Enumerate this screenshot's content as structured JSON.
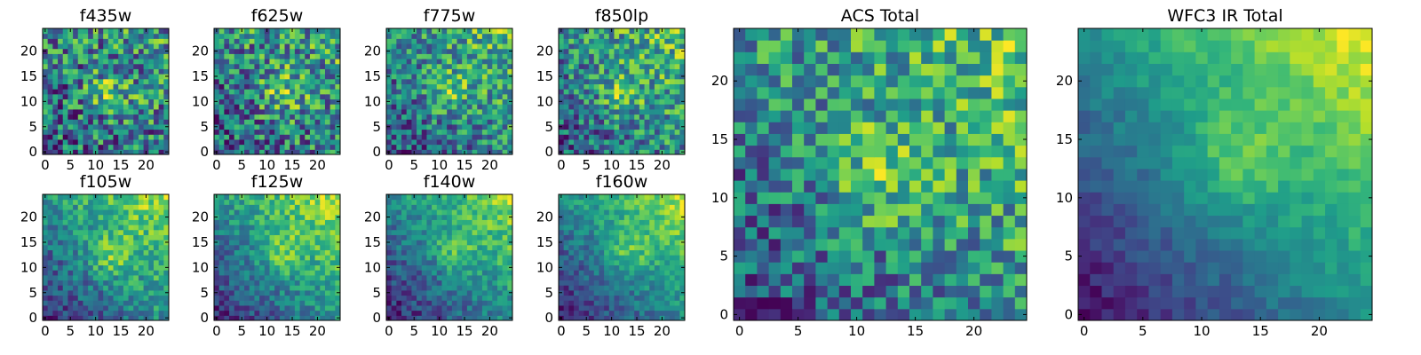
{
  "chart_data": {
    "type": "heatmap",
    "colormap": "viridis",
    "grid": false,
    "grid_size": [
      25,
      25
    ],
    "origin": "lower",
    "panels": [
      {
        "id": "f435w",
        "title": "f435w",
        "xticks": [
          "0",
          "5",
          "10",
          "15",
          "20"
        ],
        "yticks": [
          "0",
          "5",
          "10",
          "15",
          "20"
        ],
        "xlim": [
          -0.5,
          24.5
        ],
        "ylim": [
          -0.5,
          24.5
        ],
        "value_range": [
          0,
          1
        ],
        "noise": 0.42,
        "gradient": 0.12,
        "bright_spot": [
          13,
          12
        ],
        "seed": 11
      },
      {
        "id": "f625w",
        "title": "f625w",
        "xticks": [
          "0",
          "5",
          "10",
          "15",
          "20"
        ],
        "yticks": [
          "0",
          "5",
          "10",
          "15",
          "20"
        ],
        "xlim": [
          -0.5,
          24.5
        ],
        "ylim": [
          -0.5,
          24.5
        ],
        "value_range": [
          0,
          1
        ],
        "noise": 0.4,
        "gradient": 0.18,
        "bright_spot": [
          13,
          12
        ],
        "seed": 23
      },
      {
        "id": "f775w",
        "title": "f775w",
        "xticks": [
          "0",
          "5",
          "10",
          "15",
          "20"
        ],
        "yticks": [
          "0",
          "5",
          "10",
          "15",
          "20"
        ],
        "xlim": [
          -0.5,
          24.5
        ],
        "ylim": [
          -0.5,
          24.5
        ],
        "value_range": [
          0,
          1
        ],
        "noise": 0.38,
        "gradient": 0.32,
        "bright_spot": [
          12,
          12
        ],
        "seed": 37
      },
      {
        "id": "f850lp",
        "title": "f850lp",
        "xticks": [
          "0",
          "5",
          "10",
          "15",
          "20"
        ],
        "yticks": [
          "0",
          "5",
          "10",
          "15",
          "20"
        ],
        "xlim": [
          -0.5,
          24.5
        ],
        "ylim": [
          -0.5,
          24.5
        ],
        "value_range": [
          0,
          1
        ],
        "noise": 0.38,
        "gradient": 0.3,
        "bright_spot": [
          12,
          12
        ],
        "seed": 41
      },
      {
        "id": "f105w",
        "title": "f105w",
        "xticks": [
          "0",
          "5",
          "10",
          "15",
          "20"
        ],
        "yticks": [
          "0",
          "5",
          "10",
          "15",
          "20"
        ],
        "xlim": [
          -0.5,
          24.5
        ],
        "ylim": [
          -0.5,
          24.5
        ],
        "value_range": [
          0,
          1
        ],
        "noise": 0.24,
        "gradient": 0.55,
        "bright_spot": [
          13,
          12
        ],
        "seed": 53
      },
      {
        "id": "f125w",
        "title": "f125w",
        "xticks": [
          "0",
          "5",
          "10",
          "15",
          "20"
        ],
        "yticks": [
          "0",
          "5",
          "10",
          "15",
          "20"
        ],
        "xlim": [
          -0.5,
          24.5
        ],
        "ylim": [
          -0.5,
          24.5
        ],
        "value_range": [
          0,
          1
        ],
        "noise": 0.22,
        "gradient": 0.6,
        "bright_spot": [
          13,
          13
        ],
        "seed": 67
      },
      {
        "id": "f140w",
        "title": "f140w",
        "xticks": [
          "0",
          "5",
          "10",
          "15",
          "20"
        ],
        "yticks": [
          "0",
          "5",
          "10",
          "15",
          "20"
        ],
        "xlim": [
          -0.5,
          24.5
        ],
        "ylim": [
          -0.5,
          24.5
        ],
        "value_range": [
          0,
          1
        ],
        "noise": 0.22,
        "gradient": 0.62,
        "bright_spot": [
          13,
          13
        ],
        "seed": 71
      },
      {
        "id": "f160w",
        "title": "f160w",
        "xticks": [
          "0",
          "5",
          "10",
          "15",
          "20"
        ],
        "yticks": [
          "0",
          "5",
          "10",
          "15",
          "20"
        ],
        "xlim": [
          -0.5,
          24.5
        ],
        "ylim": [
          -0.5,
          24.5
        ],
        "value_range": [
          0,
          1
        ],
        "noise": 0.2,
        "gradient": 0.68,
        "bright_spot": [
          13,
          13
        ],
        "seed": 83
      },
      {
        "id": "acs-total",
        "title": "ACS Total",
        "xticks": [
          "0",
          "5",
          "10",
          "15",
          "20"
        ],
        "yticks": [
          "0",
          "5",
          "10",
          "15",
          "20"
        ],
        "xlim": [
          -0.5,
          24.5
        ],
        "ylim": [
          -0.5,
          24.5
        ],
        "value_range": [
          0,
          1
        ],
        "noise": 0.34,
        "gradient": 0.34,
        "bright_spot": [
          12,
          12
        ],
        "seed": 97
      },
      {
        "id": "wfc3-ir-total",
        "title": "WFC3 IR Total",
        "xticks": [
          "0",
          "5",
          "10",
          "15",
          "20"
        ],
        "yticks": [
          "0",
          "5",
          "10",
          "15",
          "20"
        ],
        "xlim": [
          -0.5,
          24.5
        ],
        "ylim": [
          -0.5,
          24.5
        ],
        "value_range": [
          0,
          1
        ],
        "noise": 0.12,
        "gradient": 0.78,
        "bright_spot": [
          13,
          13
        ],
        "seed": 101
      }
    ]
  }
}
